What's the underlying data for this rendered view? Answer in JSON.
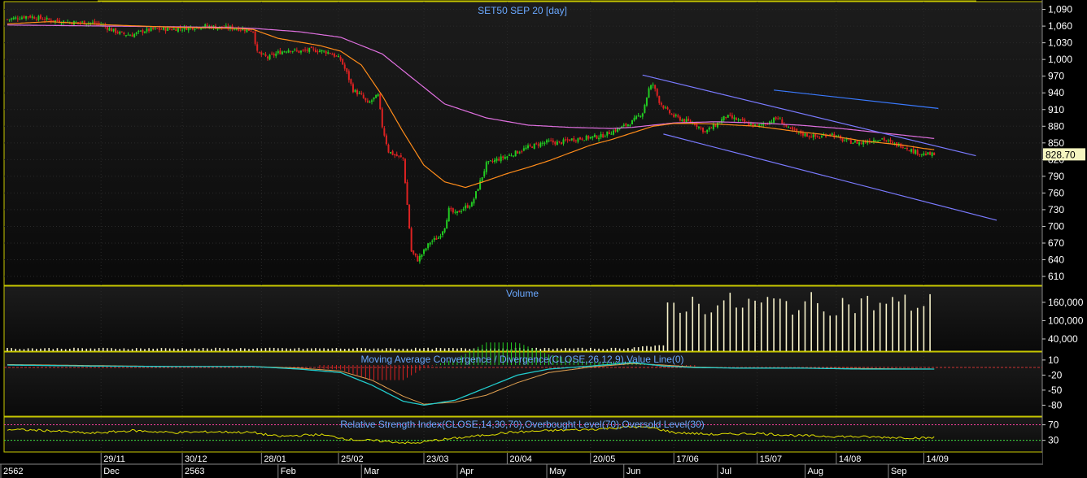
{
  "titles": {
    "price": "SET50 SEP 20    [day]",
    "volume": "Volume",
    "macd": "Moving Average Convergence / Divergence(CLOSE,26,12,9),Value Line(0)",
    "rsi": "Relative Strength Index(CLOSE,14,30,70),Overbought Level(70),Oversold Level(30)"
  },
  "last_price_label": "828.70",
  "colors": {
    "background": "#000000",
    "panel_border": "#c8c800",
    "grid": "#2a2a2a",
    "candle_up": "#22cc22",
    "candle_down": "#dd2222",
    "ma_fast": "#ff8c1a",
    "ma_slow": "#e070e0",
    "trendline": "#7a7aff",
    "trendline_upper": "#3a7aff",
    "volume": "#f5f0c8",
    "macd_line": "#22cccc",
    "signal_line": "#e0a050",
    "rsi_line": "#e0e000",
    "overbought": "#ff40a0",
    "oversold": "#40dd40",
    "title": "#6aa8ff",
    "axis_text": "#ffffff",
    "price_box": "#f5f5c0"
  },
  "chart_data": [
    {
      "type": "candlestick",
      "title": "SET50 SEP 20    [day]",
      "y_ticks": [
        "1,090",
        "1,060",
        "1,030",
        "1,000",
        "970",
        "940",
        "910",
        "880",
        "850",
        "820",
        "790",
        "760",
        "730",
        "700",
        "670",
        "640",
        "610"
      ],
      "y_tick_values": [
        1090,
        1060,
        1030,
        1000,
        970,
        940,
        910,
        880,
        850,
        820,
        790,
        760,
        730,
        700,
        670,
        640,
        610
      ],
      "ylim": [
        594,
        1104
      ],
      "last_value": 828.7,
      "close_path": [
        [
          0,
          1072
        ],
        [
          10,
          1078
        ],
        [
          20,
          1071
        ],
        [
          30,
          1067
        ],
        [
          40,
          1066
        ],
        [
          45,
          1063
        ],
        [
          50,
          1053
        ],
        [
          55,
          1046
        ],
        [
          60,
          1044
        ],
        [
          65,
          1051
        ],
        [
          70,
          1054
        ],
        [
          80,
          1055
        ],
        [
          90,
          1058
        ],
        [
          95,
          1060
        ],
        [
          100,
          1058
        ],
        [
          110,
          1056
        ],
        [
          118,
          1052
        ],
        [
          120,
          1012
        ],
        [
          125,
          1003
        ],
        [
          130,
          1012
        ],
        [
          135,
          1018
        ],
        [
          140,
          1014
        ],
        [
          145,
          1017
        ],
        [
          150,
          1016
        ],
        [
          155,
          1012
        ],
        [
          160,
          1000
        ],
        [
          163,
          975
        ],
        [
          166,
          945
        ],
        [
          170,
          935
        ],
        [
          173,
          920
        ],
        [
          176,
          930
        ],
        [
          178,
          935
        ],
        [
          180,
          880
        ],
        [
          183,
          835
        ],
        [
          186,
          828
        ],
        [
          190,
          822
        ],
        [
          194,
          655
        ],
        [
          197,
          640
        ],
        [
          200,
          655
        ],
        [
          203,
          672
        ],
        [
          207,
          680
        ],
        [
          210,
          700
        ],
        [
          212,
          730
        ],
        [
          215,
          722
        ],
        [
          220,
          735
        ],
        [
          223,
          740
        ],
        [
          225,
          760
        ],
        [
          228,
          790
        ],
        [
          230,
          812
        ],
        [
          235,
          820
        ],
        [
          240,
          826
        ],
        [
          245,
          834
        ],
        [
          250,
          842
        ],
        [
          255,
          848
        ],
        [
          260,
          852
        ],
        [
          265,
          850
        ],
        [
          270,
          856
        ],
        [
          275,
          858
        ],
        [
          280,
          860
        ],
        [
          285,
          862
        ],
        [
          290,
          870
        ],
        [
          295,
          878
        ],
        [
          300,
          888
        ],
        [
          305,
          905
        ],
        [
          308,
          947
        ],
        [
          310,
          955
        ],
        [
          313,
          925
        ],
        [
          316,
          910
        ],
        [
          320,
          898
        ],
        [
          325,
          890
        ],
        [
          330,
          885
        ],
        [
          335,
          870
        ],
        [
          340,
          882
        ],
        [
          345,
          898
        ],
        [
          350,
          892
        ],
        [
          355,
          885
        ],
        [
          360,
          880
        ],
        [
          365,
          887
        ],
        [
          370,
          895
        ],
        [
          375,
          875
        ],
        [
          380,
          868
        ],
        [
          385,
          863
        ],
        [
          390,
          860
        ],
        [
          395,
          868
        ],
        [
          400,
          856
        ],
        [
          405,
          852
        ],
        [
          410,
          850
        ],
        [
          415,
          855
        ],
        [
          420,
          858
        ],
        [
          425,
          848
        ],
        [
          430,
          845
        ],
        [
          435,
          835
        ],
        [
          440,
          830
        ],
        [
          445,
          828.7
        ]
      ],
      "ma_fast_path": [
        [
          0,
          1064
        ],
        [
          20,
          1068
        ],
        [
          50,
          1062
        ],
        [
          80,
          1058
        ],
        [
          110,
          1056
        ],
        [
          118,
          1054
        ],
        [
          130,
          1038
        ],
        [
          150,
          1025
        ],
        [
          160,
          1015
        ],
        [
          170,
          990
        ],
        [
          180,
          935
        ],
        [
          190,
          870
        ],
        [
          200,
          810
        ],
        [
          210,
          780
        ],
        [
          220,
          770
        ],
        [
          230,
          782
        ],
        [
          240,
          795
        ],
        [
          250,
          806
        ],
        [
          260,
          818
        ],
        [
          270,
          832
        ],
        [
          280,
          846
        ],
        [
          290,
          856
        ],
        [
          300,
          868
        ],
        [
          310,
          880
        ],
        [
          320,
          885
        ],
        [
          330,
          885
        ],
        [
          340,
          884
        ],
        [
          350,
          882
        ],
        [
          360,
          880
        ],
        [
          370,
          875
        ],
        [
          380,
          870
        ],
        [
          390,
          866
        ],
        [
          400,
          860
        ],
        [
          410,
          854
        ],
        [
          420,
          850
        ],
        [
          430,
          846
        ],
        [
          440,
          840
        ],
        [
          445,
          838
        ]
      ],
      "ma_slow_path": [
        [
          0,
          1062
        ],
        [
          50,
          1060
        ],
        [
          100,
          1058
        ],
        [
          118,
          1056
        ],
        [
          140,
          1050
        ],
        [
          160,
          1040
        ],
        [
          180,
          1010
        ],
        [
          195,
          965
        ],
        [
          210,
          920
        ],
        [
          230,
          895
        ],
        [
          250,
          882
        ],
        [
          270,
          878
        ],
        [
          290,
          876
        ],
        [
          300,
          878
        ],
        [
          310,
          882
        ],
        [
          320,
          886
        ],
        [
          340,
          888
        ],
        [
          360,
          886
        ],
        [
          380,
          882
        ],
        [
          400,
          876
        ],
        [
          420,
          868
        ],
        [
          440,
          860
        ],
        [
          445,
          858
        ]
      ],
      "trendlines": [
        {
          "from": [
            305,
            972
          ],
          "to": [
            465,
            827
          ]
        },
        {
          "from": [
            315,
            866
          ],
          "to": [
            475,
            711
          ]
        },
        {
          "from": [
            368,
            945
          ],
          "to": [
            447,
            912
          ]
        }
      ],
      "x_ticks": [
        {
          "label": "29/11",
          "i": 45
        },
        {
          "label": "30/12",
          "i": 84
        },
        {
          "label": "28/01",
          "i": 122
        },
        {
          "label": "25/02",
          "i": 159
        },
        {
          "label": "23/03",
          "i": 200
        },
        {
          "label": "20/04",
          "i": 240
        },
        {
          "label": "20/05",
          "i": 280
        },
        {
          "label": "17/06",
          "i": 320
        },
        {
          "label": "15/07",
          "i": 360
        },
        {
          "label": "14/08",
          "i": 398
        },
        {
          "label": "14/09",
          "i": 440
        }
      ],
      "x_ticks_lower": [
        {
          "label": "2562",
          "i": 1
        },
        {
          "label": "Dec",
          "i": 45
        },
        {
          "label": "2563",
          "i": 84
        },
        {
          "label": "Feb",
          "i": 130
        },
        {
          "label": "Mar",
          "i": 170
        },
        {
          "label": "Apr",
          "i": 216
        },
        {
          "label": "May",
          "i": 259
        },
        {
          "label": "Jun",
          "i": 296
        },
        {
          "label": "Jul",
          "i": 341
        },
        {
          "label": "Aug",
          "i": 383
        },
        {
          "label": "Sep",
          "i": 423
        }
      ],
      "index_range": [
        0,
        498
      ]
    },
    {
      "type": "bar",
      "title": "Volume",
      "y_ticks": [
        "160,000",
        "100,000",
        "40,000"
      ],
      "y_tick_values": [
        160000,
        100000,
        40000
      ],
      "ylim": [
        0,
        213000
      ],
      "segments": [
        {
          "from": 0,
          "to": 300,
          "value": 9000
        },
        {
          "from": 301,
          "to": 316,
          "value": 16000
        },
        {
          "from": 317,
          "to": 445,
          "value": 155000
        }
      ]
    },
    {
      "type": "line",
      "title": "Moving Average Convergence / Divergence(CLOSE,26,12,9),Value Line(0)",
      "y_ticks": [
        "10",
        "-20",
        "-50",
        "-80"
      ],
      "y_tick_values": [
        10,
        -20,
        -50,
        -80
      ],
      "ylim": [
        -102,
        26
      ],
      "zero_line": 0,
      "macd_path": [
        [
          0,
          0
        ],
        [
          40,
          -2
        ],
        [
          80,
          -3
        ],
        [
          118,
          -3
        ],
        [
          140,
          -8
        ],
        [
          160,
          -15
        ],
        [
          175,
          -40
        ],
        [
          190,
          -72
        ],
        [
          200,
          -80
        ],
        [
          215,
          -70
        ],
        [
          230,
          -45
        ],
        [
          245,
          -20
        ],
        [
          260,
          -8
        ],
        [
          280,
          -2
        ],
        [
          300,
          5
        ],
        [
          315,
          -2
        ],
        [
          330,
          -5
        ],
        [
          350,
          -6
        ],
        [
          380,
          -6
        ],
        [
          410,
          -8
        ],
        [
          445,
          -8
        ]
      ],
      "signal_path": [
        [
          0,
          1
        ],
        [
          40,
          -1
        ],
        [
          80,
          -3
        ],
        [
          118,
          -3
        ],
        [
          140,
          -6
        ],
        [
          160,
          -12
        ],
        [
          175,
          -30
        ],
        [
          190,
          -62
        ],
        [
          200,
          -78
        ],
        [
          215,
          -74
        ],
        [
          230,
          -60
        ],
        [
          245,
          -35
        ],
        [
          260,
          -15
        ],
        [
          280,
          -4
        ],
        [
          300,
          3
        ],
        [
          315,
          0
        ],
        [
          330,
          -4
        ],
        [
          350,
          -6
        ],
        [
          380,
          -6
        ],
        [
          410,
          -7
        ],
        [
          445,
          -8
        ]
      ],
      "histogram": {
        "from": 150,
        "to": 330
      }
    },
    {
      "type": "line",
      "title": "Relative Strength Index(CLOSE,14,30,70),Overbought Level(70),Oversold Level(30)",
      "y_ticks": [
        "70",
        "30"
      ],
      "y_tick_values": [
        70,
        30
      ],
      "ylim": [
        0,
        90
      ],
      "overbought": 70,
      "oversold": 30,
      "rsi_path": [
        [
          0,
          58
        ],
        [
          20,
          55
        ],
        [
          40,
          48
        ],
        [
          60,
          55
        ],
        [
          80,
          50
        ],
        [
          100,
          52
        ],
        [
          118,
          50
        ],
        [
          130,
          40
        ],
        [
          150,
          45
        ],
        [
          165,
          32
        ],
        [
          180,
          28
        ],
        [
          195,
          22
        ],
        [
          205,
          30
        ],
        [
          220,
          38
        ],
        [
          240,
          50
        ],
        [
          260,
          55
        ],
        [
          280,
          58
        ],
        [
          300,
          65
        ],
        [
          310,
          62
        ],
        [
          320,
          50
        ],
        [
          340,
          45
        ],
        [
          360,
          48
        ],
        [
          380,
          42
        ],
        [
          400,
          40
        ],
        [
          420,
          38
        ],
        [
          440,
          36
        ],
        [
          445,
          37
        ]
      ]
    }
  ]
}
